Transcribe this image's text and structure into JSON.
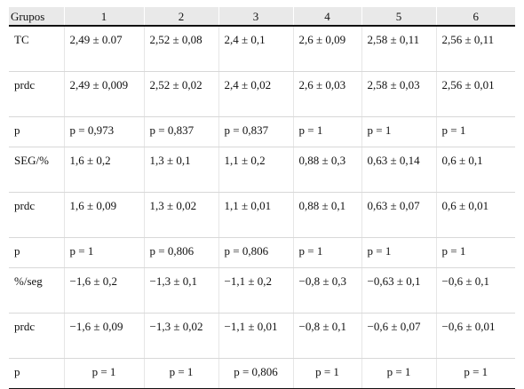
{
  "table": {
    "headers": [
      "Grupos",
      "1",
      "2",
      "3",
      "4",
      "5",
      "6"
    ],
    "rows": [
      [
        "TC",
        "2,49 ± 0.07",
        "2,52 ± 0,08",
        "2,4 ± 0,1",
        "2,6 ± 0,09",
        "2,58 ± 0,11",
        "2,56 ± 0,11"
      ],
      [
        "prdc",
        "2,49 ± 0,009",
        "2,52 ± 0,02",
        "2,4 ± 0,02",
        "2,6 ± 0,03",
        "2,58 ± 0,03",
        "2,56 ± 0,01"
      ],
      [
        "p",
        "p = 0,973",
        "p = 0,837",
        "p = 0,837",
        "p = 1",
        "p = 1",
        "p = 1"
      ],
      [
        "SEG/%",
        "1,6 ± 0,2",
        "1,3 ± 0,1",
        "1,1 ± 0,2",
        "0,88 ± 0,3",
        "0,63 ± 0,14",
        "0,6 ± 0,1"
      ],
      [
        "prdc",
        "1,6 ± 0,09",
        "1,3 ± 0,02",
        "1,1 ± 0,01",
        "0,88 ± 0,1",
        "0,63 ± 0,07",
        "0,6 ± 0,01"
      ],
      [
        "p",
        "p = 1",
        "p = 0,806",
        "p = 0,806",
        "p = 1",
        "p = 1",
        "p = 1"
      ],
      [
        "%/seg",
        "−1,6 ± 0,2",
        "−1,3 ± 0,1",
        "−1,1 ± 0,2",
        "−0,8 ± 0,3",
        "−0,63 ± 0,1",
        "−0,6 ± 0,1"
      ],
      [
        "prdc",
        "−1,6 ± 0,09",
        "−1,3 ± 0,02",
        "−1,1 ± 0,01",
        "−0,8 ± 0,1",
        "−0,6 ± 0,07",
        "−0,6 ± 0,01"
      ],
      [
        "p",
        "p = 1",
        "p = 1",
        "p = 0,806",
        "p = 1",
        "p = 1",
        "p = 1"
      ]
    ]
  }
}
